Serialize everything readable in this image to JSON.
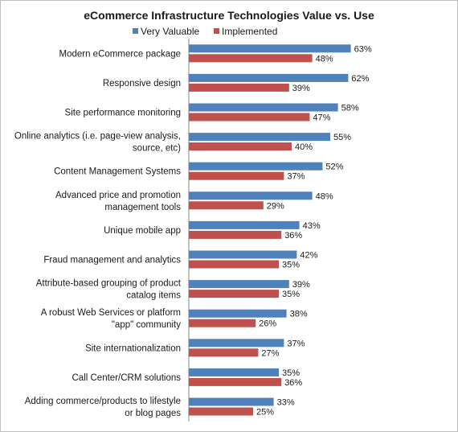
{
  "chart_data": {
    "type": "bar",
    "orientation": "horizontal",
    "title": "eCommerce Infrastructure Technologies Value vs. Use",
    "legend_position": "top",
    "grid": false,
    "xlim": [
      0,
      70
    ],
    "categories": [
      [
        "Modern eCommerce package"
      ],
      [
        "Responsive design"
      ],
      [
        "Site performance monitoring"
      ],
      [
        "Online analytics (i.e. page-view analysis,",
        "source, etc)"
      ],
      [
        "Content Management Systems"
      ],
      [
        "Advanced price and promotion",
        "management tools"
      ],
      [
        "Unique mobile app"
      ],
      [
        "Fraud management and analytics"
      ],
      [
        "Attribute-based grouping of product",
        "catalog items"
      ],
      [
        "A robust Web Services or platform",
        "\"app\" community"
      ],
      [
        "Site internationalization"
      ],
      [
        "Call Center/CRM solutions"
      ],
      [
        "Adding commerce/products to lifestyle",
        "or blog pages"
      ]
    ],
    "series": [
      {
        "name": "Very Valuable",
        "color": "#4f81bd",
        "values": [
          63,
          62,
          58,
          55,
          52,
          48,
          43,
          42,
          39,
          38,
          37,
          35,
          33
        ],
        "labels": [
          "63%",
          "62%",
          "58%",
          "55%",
          "52%",
          "48%",
          "43%",
          "42%",
          "39%",
          "38%",
          "37%",
          "35%",
          "33%"
        ]
      },
      {
        "name": "Implemented",
        "color": "#c0504d",
        "values": [
          48,
          39,
          47,
          40,
          37,
          29,
          36,
          35,
          35,
          26,
          27,
          36,
          25
        ],
        "labels": [
          "48%",
          "39%",
          "47%",
          "40%",
          "37%",
          "29%",
          "36%",
          "35%",
          "35%",
          "26%",
          "27%",
          "36%",
          "25%"
        ]
      }
    ]
  }
}
